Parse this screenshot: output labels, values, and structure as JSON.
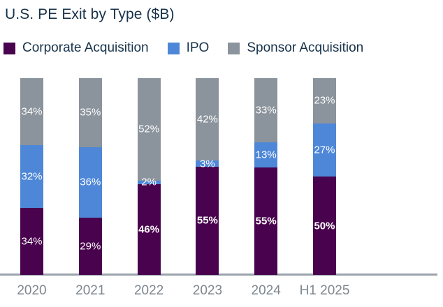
{
  "title": "U.S. PE Exit by Type ($B)",
  "colors": {
    "corporate": "#49024d",
    "ipo": "#4e87d7",
    "sponsor": "#8b939c",
    "title_text": "#17324a",
    "axis_line": "#9aa2ab",
    "axis_label_text": "#7c868f",
    "bar_label_text": "#ffffff",
    "background": "#ffffff"
  },
  "legend": {
    "items": [
      {
        "label": "Corporate Acquisition",
        "color_key": "corporate"
      },
      {
        "label": "IPO",
        "color_key": "ipo"
      },
      {
        "label": "Sponsor Acquisition",
        "color_key": "sponsor"
      }
    ]
  },
  "chart_data": {
    "type": "bar",
    "subtype": "stacked-100-percent",
    "title": "U.S. PE Exit by Type ($B)",
    "categories": [
      "2020",
      "2021",
      "2022",
      "2023",
      "2024",
      "H1 2025"
    ],
    "series": [
      {
        "name": "Corporate Acquisition",
        "color_key": "corporate",
        "values": [
          34,
          29,
          46,
          55,
          55,
          50
        ],
        "labels": [
          "34%",
          "29%",
          "46%",
          "55%",
          "55%",
          "50%"
        ],
        "bold_labels": [
          false,
          false,
          true,
          true,
          true,
          true
        ]
      },
      {
        "name": "IPO",
        "color_key": "ipo",
        "values": [
          32,
          36,
          2,
          3,
          13,
          27
        ],
        "labels": [
          "32%",
          "36%",
          "2%",
          "3%",
          "13%",
          "27%"
        ],
        "bold_labels": [
          false,
          false,
          false,
          false,
          false,
          false
        ]
      },
      {
        "name": "Sponsor Acquisition",
        "color_key": "sponsor",
        "values": [
          34,
          35,
          52,
          42,
          33,
          23
        ],
        "labels": [
          "34%",
          "35%",
          "52%",
          "42%",
          "33%",
          "23%"
        ],
        "bold_labels": [
          false,
          false,
          false,
          false,
          false,
          false
        ]
      }
    ],
    "stack_order_top_to_bottom": [
      "Sponsor Acquisition",
      "IPO",
      "Corporate Acquisition"
    ],
    "value_unit": "%",
    "ylim": [
      0,
      100
    ],
    "grid": false,
    "legend_position": "top-left",
    "y_axis_visible": false,
    "x_axis_line_visible": true
  }
}
